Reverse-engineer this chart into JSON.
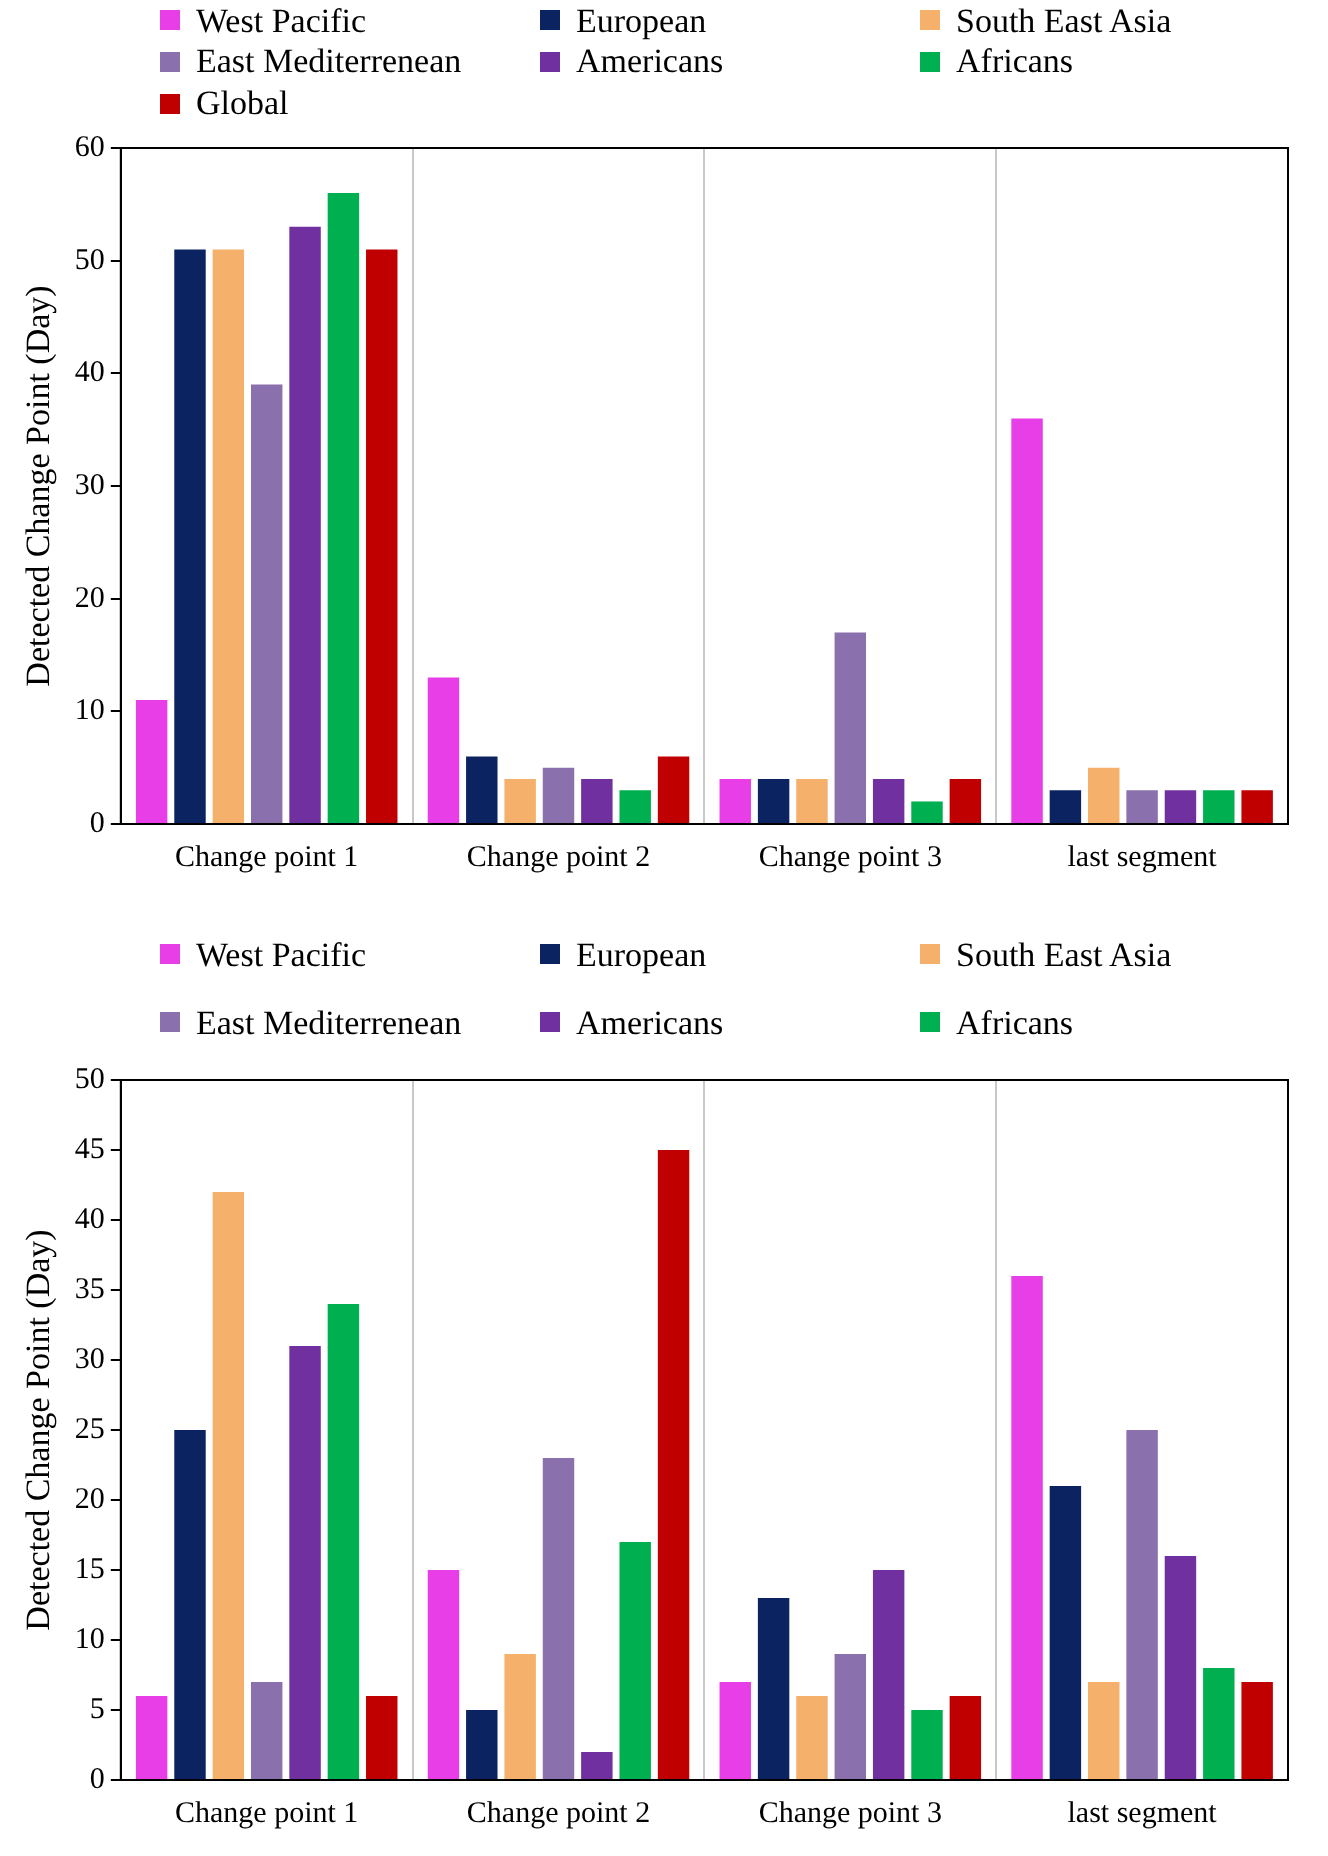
{
  "chart_data": [
    {
      "type": "bar",
      "ylabel": "Detected Change Point (Day)",
      "categories": [
        "Change point 1",
        "Change point 2",
        "Change point 3",
        "last segment"
      ],
      "ylim": [
        0,
        60
      ],
      "yticks": [
        0,
        10,
        20,
        30,
        40,
        50,
        60
      ],
      "grid": "x",
      "legend": "top",
      "series": [
        {
          "name": "West Pacific",
          "color": "#e83ee8",
          "values": [
            11,
            13,
            4,
            36
          ]
        },
        {
          "name": "European",
          "color": "#0c2361",
          "values": [
            51,
            6,
            4,
            3
          ]
        },
        {
          "name": "South East Asia",
          "color": "#f5b06b",
          "values": [
            51,
            4,
            4,
            5
          ]
        },
        {
          "name": "East Mediterrenean",
          "color": "#8a70ad",
          "values": [
            39,
            5,
            17,
            3
          ]
        },
        {
          "name": "Americans",
          "color": "#7030a0",
          "values": [
            53,
            4,
            4,
            3
          ]
        },
        {
          "name": "Africans",
          "color": "#00b050",
          "values": [
            56,
            3,
            2,
            3
          ]
        },
        {
          "name": "Global",
          "color": "#c00000",
          "values": [
            51,
            6,
            4,
            3
          ]
        }
      ]
    },
    {
      "type": "bar",
      "ylabel": "Detected Change Point (Day)",
      "categories": [
        "Change point 1",
        "Change point 2",
        "Change point 3",
        "last segment"
      ],
      "ylim": [
        0,
        50
      ],
      "yticks": [
        0,
        5,
        10,
        15,
        20,
        25,
        30,
        35,
        40,
        45,
        50
      ],
      "grid": "x",
      "legend": "top",
      "series": [
        {
          "name": "West Pacific",
          "color": "#e83ee8",
          "values": [
            6,
            15,
            7,
            36
          ]
        },
        {
          "name": "European",
          "color": "#0c2361",
          "values": [
            25,
            5,
            13,
            21
          ]
        },
        {
          "name": "South East Asia",
          "color": "#f5b06b",
          "values": [
            42,
            9,
            6,
            7
          ]
        },
        {
          "name": "East Mediterrenean",
          "color": "#8a70ad",
          "values": [
            7,
            23,
            9,
            25
          ]
        },
        {
          "name": "Americans",
          "color": "#7030a0",
          "values": [
            31,
            2,
            15,
            16
          ]
        },
        {
          "name": "Africans",
          "color": "#00b050",
          "values": [
            34,
            17,
            5,
            8
          ]
        },
        {
          "color": "#c00000",
          "values": [
            6,
            45,
            6,
            7
          ]
        }
      ]
    }
  ]
}
